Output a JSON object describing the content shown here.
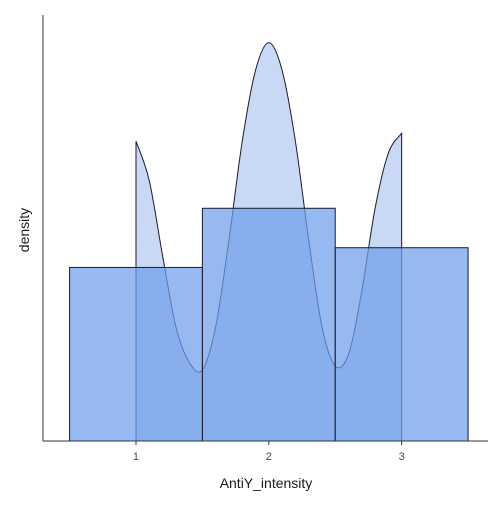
{
  "chart_data": {
    "type": "bar",
    "xlabel": "AntiY_intensity",
    "ylabel": "density",
    "xlim": [
      0.3,
      3.65
    ],
    "ylim": [
      0,
      1.08
    ],
    "x_ticks": [
      1,
      2,
      3
    ],
    "x_tick_labels": [
      "1",
      "2",
      "3"
    ],
    "y_ticks_shown": false,
    "grid": false,
    "histogram": {
      "bins": [
        {
          "x_start": 0.5,
          "x_end": 1.5,
          "density": 0.44
        },
        {
          "x_start": 1.5,
          "x_end": 2.5,
          "density": 0.59
        },
        {
          "x_start": 2.5,
          "x_end": 3.5,
          "density": 0.49
        }
      ]
    },
    "density_curve": {
      "x": [
        1.0,
        1.1,
        1.2,
        1.3,
        1.4,
        1.5,
        1.6,
        1.7,
        1.8,
        1.9,
        2.0,
        2.1,
        2.2,
        2.3,
        2.4,
        2.5,
        2.6,
        2.7,
        2.8,
        2.9,
        3.0
      ],
      "y": [
        0.76,
        0.66,
        0.47,
        0.29,
        0.2,
        0.18,
        0.29,
        0.51,
        0.76,
        0.94,
        1.01,
        0.94,
        0.76,
        0.51,
        0.29,
        0.19,
        0.22,
        0.38,
        0.59,
        0.73,
        0.78
      ]
    },
    "colors": {
      "histogram_fill": "#6d9eeb",
      "density_fill": "#c9d9f5",
      "outline": "#1a1a2e",
      "axis": "#333333"
    }
  }
}
